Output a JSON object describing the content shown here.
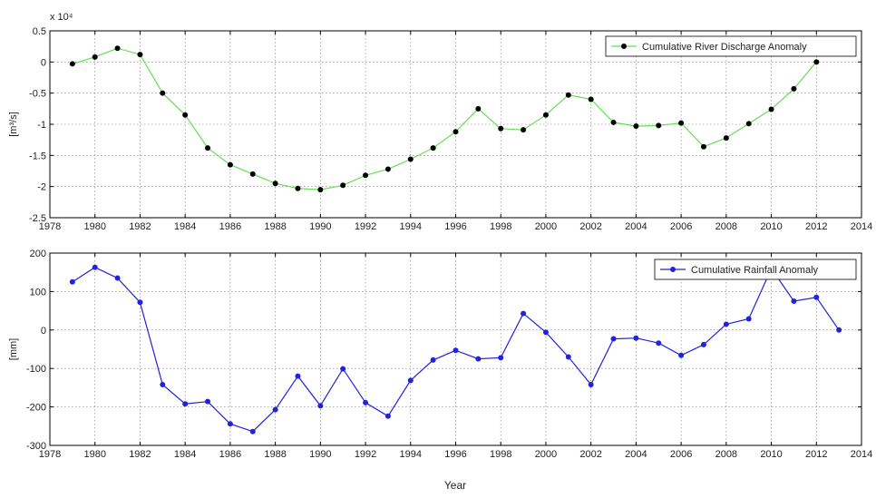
{
  "xlabel": "Year",
  "chart_data": [
    {
      "type": "line",
      "title": "",
      "xlabel": "",
      "ylabel": "[m³/s]",
      "y_multiplier": "x 10⁴",
      "xlim": [
        1978,
        2014
      ],
      "ylim": [
        -2.5,
        0.5
      ],
      "xticks": [
        "1978",
        "1980",
        "1982",
        "1984",
        "1986",
        "1988",
        "1990",
        "1992",
        "1994",
        "1996",
        "1998",
        "2000",
        "2002",
        "2004",
        "2006",
        "2008",
        "2010",
        "2012",
        "2014"
      ],
      "yticks": [
        "-2.5",
        "-2",
        "-1.5",
        "-1",
        "-0.5",
        "0",
        "0.5"
      ],
      "grid": true,
      "legend": "top-right",
      "series": [
        {
          "name": "Cumulative River Discharge Anomaly",
          "line_color": "#66dd55",
          "marker_color": "#000000",
          "x": [
            1979,
            1980,
            1981,
            1982,
            1983,
            1984,
            1985,
            1986,
            1987,
            1988,
            1989,
            1990,
            1991,
            1992,
            1993,
            1994,
            1995,
            1996,
            1997,
            1998,
            1999,
            2000,
            2001,
            2002,
            2003,
            2004,
            2005,
            2006,
            2007,
            2008,
            2009,
            2010,
            2011,
            2012
          ],
          "y": [
            -0.03,
            0.08,
            0.22,
            0.12,
            -0.5,
            -0.85,
            -1.38,
            -1.65,
            -1.8,
            -1.95,
            -2.03,
            -2.05,
            -1.98,
            -1.82,
            -1.72,
            -1.56,
            -1.38,
            -1.12,
            -0.75,
            -1.07,
            -1.09,
            -0.85,
            -0.53,
            -0.6,
            -0.97,
            -1.03,
            -1.02,
            -0.98,
            -1.36,
            -1.22,
            -0.99,
            -0.76,
            -0.43,
            0.0
          ]
        }
      ]
    },
    {
      "type": "line",
      "title": "",
      "xlabel": "Year",
      "ylabel": "[mm]",
      "xlim": [
        1978,
        2014
      ],
      "ylim": [
        -300,
        200
      ],
      "xticks": [
        "1978",
        "1980",
        "1982",
        "1984",
        "1986",
        "1988",
        "1990",
        "1992",
        "1994",
        "1996",
        "1998",
        "2000",
        "2002",
        "2004",
        "2006",
        "2008",
        "2010",
        "2012",
        "2014"
      ],
      "yticks": [
        "-300",
        "-200",
        "-100",
        "0",
        "100",
        "200"
      ],
      "grid": true,
      "legend": "top-right",
      "series": [
        {
          "name": "Cumulative Rainfall Anomaly",
          "line_color": "#2222dd",
          "marker_color": "#2222dd",
          "x": [
            1979,
            1980,
            1981,
            1982,
            1983,
            1984,
            1985,
            1986,
            1987,
            1988,
            1989,
            1990,
            1991,
            1992,
            1993,
            1994,
            1995,
            1996,
            1997,
            1998,
            1999,
            2000,
            2001,
            2002,
            2003,
            2004,
            2005,
            2006,
            2007,
            2008,
            2009,
            2010,
            2011,
            2012,
            2013
          ],
          "y": [
            125,
            163,
            135,
            72,
            -142,
            -192,
            -186,
            -244,
            -264,
            -207,
            -120,
            -197,
            -101,
            -189,
            -224,
            -131,
            -78,
            -53,
            -75,
            -72,
            43,
            -6,
            -70,
            -142,
            -23,
            -21,
            -34,
            -66,
            -38,
            15,
            29,
            160,
            75,
            85,
            0
          ]
        }
      ]
    }
  ]
}
